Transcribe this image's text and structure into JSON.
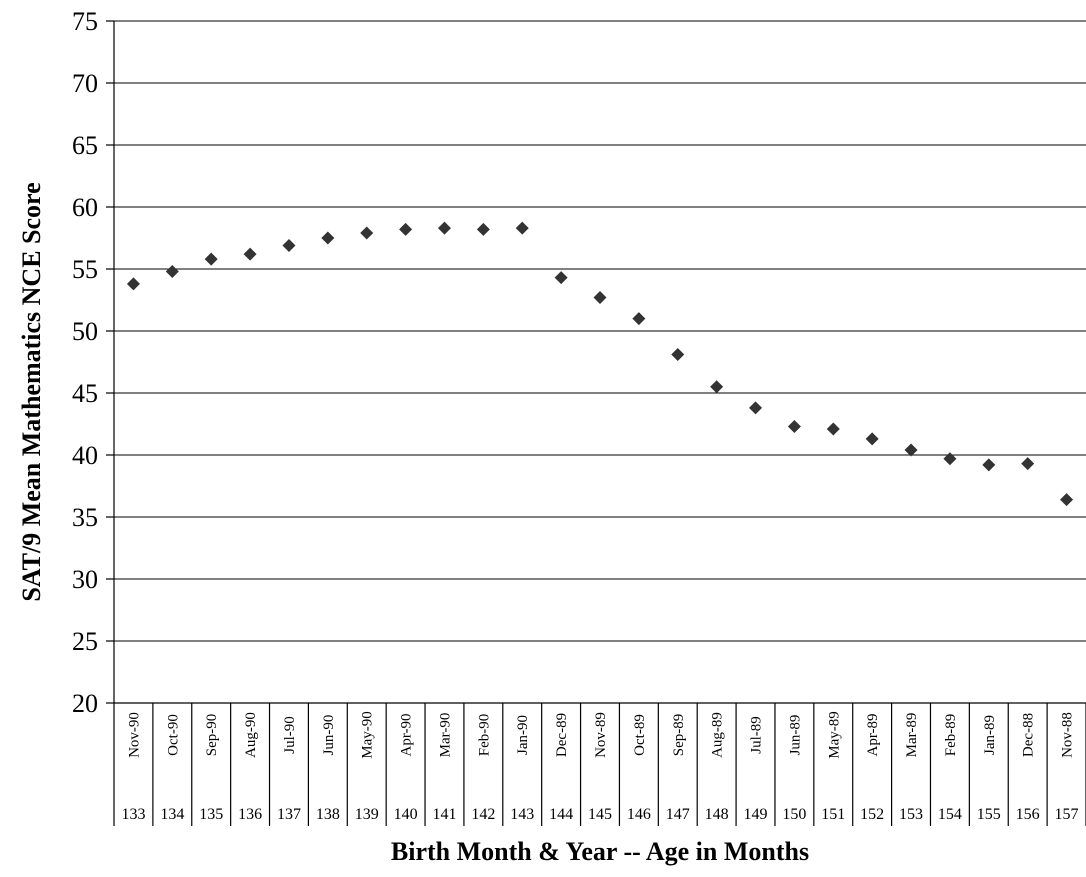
{
  "chart_data": {
    "type": "scatter",
    "title": "",
    "xlabel": "Birth Month & Year -- Age in Months",
    "ylabel": "SAT/9 Mean Mathematics NCE Score",
    "ylim": [
      20,
      75
    ],
    "yticks": [
      20,
      25,
      30,
      35,
      40,
      45,
      50,
      55,
      60,
      65,
      70,
      75
    ],
    "grid": true,
    "legend": "none",
    "categories": [
      "Nov-90",
      "Oct-90",
      "Sep-90",
      "Aug-90",
      "Jul-90",
      "Jun-90",
      "May-90",
      "Apr-90",
      "Mar-90",
      "Feb-90",
      "Jan-90",
      "Dec-89",
      "Nov-89",
      "Oct-89",
      "Sep-89",
      "Aug-89",
      "Jul-89",
      "Jun-89",
      "May-89",
      "Apr-89",
      "Mar-89",
      "Feb-89",
      "Jan-89",
      "Dec-88",
      "Nov-88"
    ],
    "ages": [
      "133",
      "134",
      "135",
      "136",
      "137",
      "138",
      "139",
      "140",
      "141",
      "142",
      "143",
      "144",
      "145",
      "146",
      "147",
      "148",
      "149",
      "150",
      "151",
      "152",
      "153",
      "154",
      "155",
      "156",
      "157"
    ],
    "values": [
      53.8,
      54.8,
      55.8,
      56.2,
      56.9,
      57.5,
      57.9,
      58.2,
      58.3,
      58.2,
      58.3,
      54.3,
      52.7,
      51.0,
      48.1,
      45.5,
      43.8,
      42.3,
      42.1,
      41.3,
      40.4,
      39.7,
      39.2,
      39.3,
      36.4
    ],
    "colors": {
      "marker": "#333333",
      "grid": "#000000"
    }
  }
}
